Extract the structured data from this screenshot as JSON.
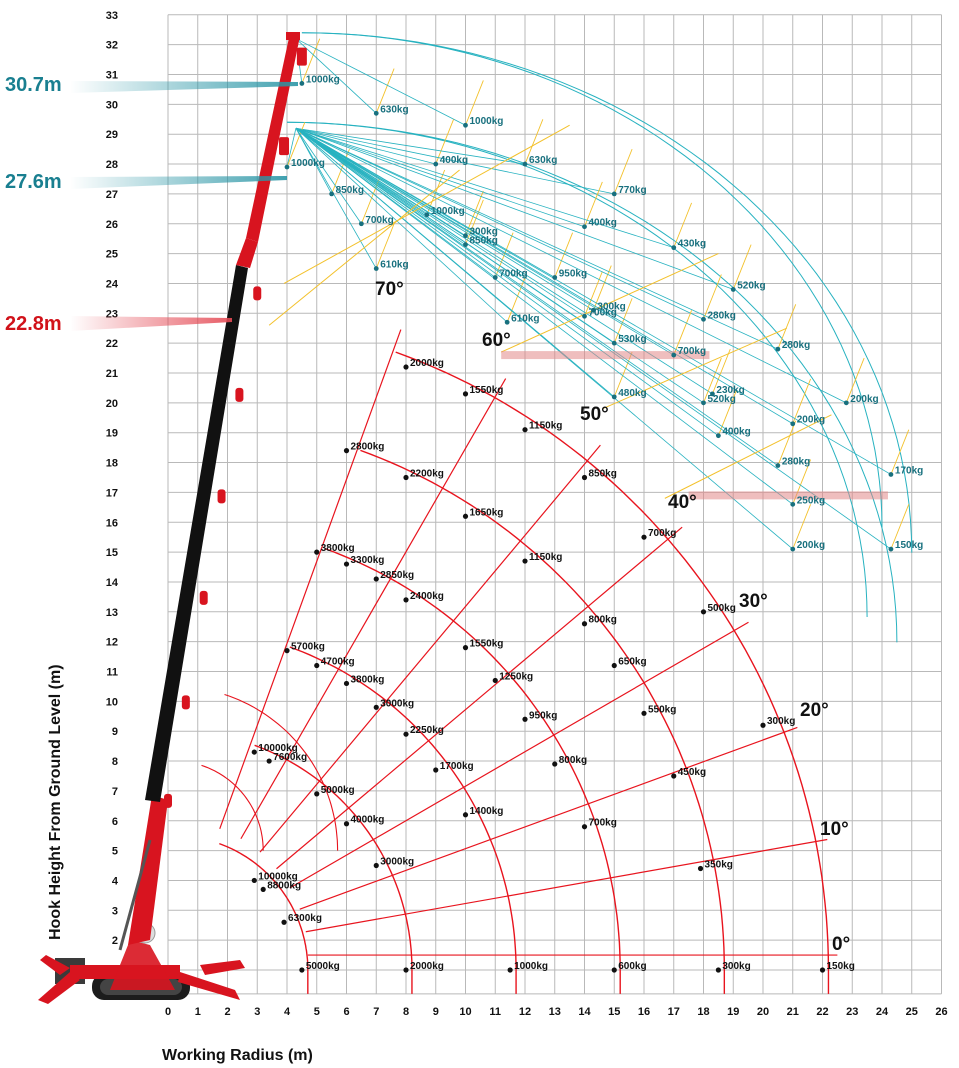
{
  "chart_data": {
    "type": "diagram",
    "subtype": "crane load chart",
    "xlabel": "Working Radius (m)",
    "ylabel": "Hook Height From Ground Level (m)",
    "xlim": [
      0,
      26
    ],
    "ylim": [
      1,
      33
    ],
    "x_ticks": [
      "0",
      "1",
      "2",
      "3",
      "4",
      "5",
      "6",
      "7",
      "8",
      "9",
      "10",
      "11",
      "12",
      "13",
      "14",
      "15",
      "16",
      "17",
      "18",
      "19",
      "20",
      "21",
      "22",
      "23",
      "24",
      "25",
      "26"
    ],
    "y_ticks": [
      "2",
      "3",
      "4",
      "5",
      "6",
      "7",
      "8",
      "9",
      "10",
      "11",
      "12",
      "13",
      "14",
      "15",
      "16",
      "17",
      "18",
      "19",
      "20",
      "21",
      "22",
      "23",
      "24",
      "25",
      "26",
      "27",
      "28",
      "29",
      "30",
      "31",
      "32",
      "33"
    ],
    "grid": true,
    "colors": {
      "main": "#e8141e",
      "jib": "#27b2c0",
      "jib_label": "#18707e",
      "jib_line": "#f3c12b",
      "boom_dark": "#111111",
      "len_red": "#d1121a",
      "len_teal": "#197f90"
    },
    "boom_lengths": [
      {
        "label": "22.8m",
        "color": "#d1121a"
      },
      {
        "label": "27.6m",
        "color": "#197f90"
      },
      {
        "label": "30.7m",
        "color": "#197f90"
      }
    ],
    "angle_labels": [
      "0°",
      "10°",
      "20°",
      "30°",
      "40°",
      "50°",
      "60°",
      "70°"
    ],
    "main_boom_arcs_radius_m": [
      4.5,
      8,
      11.5,
      15,
      18.5,
      22
    ],
    "main_boom_points": [
      {
        "x": 4.5,
        "y": 1.0,
        "label": "5000kg"
      },
      {
        "x": 8,
        "y": 1.0,
        "label": "2000kg"
      },
      {
        "x": 11.5,
        "y": 1.0,
        "label": "1000kg"
      },
      {
        "x": 15,
        "y": 1.0,
        "label": "600kg"
      },
      {
        "x": 18.5,
        "y": 1.0,
        "label": "300kg"
      },
      {
        "x": 22,
        "y": 1.0,
        "label": "150kg"
      },
      {
        "x": 3.9,
        "y": 2.6,
        "label": "6300kg"
      },
      {
        "x": 3.2,
        "y": 3.7,
        "label": "8800kg"
      },
      {
        "x": 2.9,
        "y": 4.0,
        "label": "10000kg"
      },
      {
        "x": 7.0,
        "y": 4.5,
        "label": "3000kg"
      },
      {
        "x": 17.9,
        "y": 4.4,
        "label": "350kg"
      },
      {
        "x": 6.0,
        "y": 5.9,
        "label": "4000kg"
      },
      {
        "x": 5.0,
        "y": 6.9,
        "label": "5000kg"
      },
      {
        "x": 10.0,
        "y": 6.2,
        "label": "1400kg"
      },
      {
        "x": 14.0,
        "y": 5.8,
        "label": "700kg"
      },
      {
        "x": 3.4,
        "y": 8.0,
        "label": "7600kg"
      },
      {
        "x": 2.9,
        "y": 8.3,
        "label": "10000kg"
      },
      {
        "x": 9.0,
        "y": 7.7,
        "label": "1700kg"
      },
      {
        "x": 13.0,
        "y": 7.9,
        "label": "800kg"
      },
      {
        "x": 17.0,
        "y": 7.5,
        "label": "450kg"
      },
      {
        "x": 8.0,
        "y": 8.9,
        "label": "2250kg"
      },
      {
        "x": 12.0,
        "y": 9.4,
        "label": "950kg"
      },
      {
        "x": 20.0,
        "y": 9.2,
        "label": "300kg"
      },
      {
        "x": 7.0,
        "y": 9.8,
        "label": "3000kg"
      },
      {
        "x": 16.0,
        "y": 9.6,
        "label": "550kg"
      },
      {
        "x": 6.0,
        "y": 10.6,
        "label": "3800kg"
      },
      {
        "x": 11.0,
        "y": 10.7,
        "label": "1250kg"
      },
      {
        "x": 5.0,
        "y": 11.2,
        "label": "4700kg"
      },
      {
        "x": 15.0,
        "y": 11.2,
        "label": "650kg"
      },
      {
        "x": 4.0,
        "y": 11.7,
        "label": "5700kg"
      },
      {
        "x": 10.0,
        "y": 11.8,
        "label": "1550kg"
      },
      {
        "x": 14.0,
        "y": 12.6,
        "label": "800kg"
      },
      {
        "x": 18.0,
        "y": 13.0,
        "label": "500kg"
      },
      {
        "x": 8.0,
        "y": 13.4,
        "label": "2400kg"
      },
      {
        "x": 7.0,
        "y": 14.1,
        "label": "2850kg"
      },
      {
        "x": 6.0,
        "y": 14.6,
        "label": "3300kg"
      },
      {
        "x": 5.0,
        "y": 15.0,
        "label": "3800kg"
      },
      {
        "x": 12.0,
        "y": 14.7,
        "label": "1150kg"
      },
      {
        "x": 16.0,
        "y": 15.5,
        "label": "700kg"
      },
      {
        "x": 10.0,
        "y": 16.2,
        "label": "1650kg"
      },
      {
        "x": 8.0,
        "y": 17.5,
        "label": "2200kg"
      },
      {
        "x": 14.0,
        "y": 17.5,
        "label": "850kg"
      },
      {
        "x": 6.0,
        "y": 18.4,
        "label": "2800kg"
      },
      {
        "x": 12.0,
        "y": 19.1,
        "label": "1150kg"
      },
      {
        "x": 10.0,
        "y": 20.3,
        "label": "1550kg"
      },
      {
        "x": 8.0,
        "y": 21.2,
        "label": "2000kg"
      }
    ],
    "jib_points": [
      {
        "x": 4.5,
        "y": 30.7,
        "label": "1000kg"
      },
      {
        "x": 7.0,
        "y": 29.7,
        "label": "630kg"
      },
      {
        "x": 10.0,
        "y": 29.3,
        "label": "1000kg"
      },
      {
        "x": 9.0,
        "y": 28.0,
        "label": "400kg"
      },
      {
        "x": 12.0,
        "y": 28.0,
        "label": "630kg"
      },
      {
        "x": 15.0,
        "y": 27.0,
        "label": "770kg"
      },
      {
        "x": 4.0,
        "y": 27.9,
        "label": "1000kg"
      },
      {
        "x": 5.5,
        "y": 27.0,
        "label": "850kg"
      },
      {
        "x": 8.7,
        "y": 26.3,
        "label": "1000kg"
      },
      {
        "x": 10.0,
        "y": 25.6,
        "label": "300kg"
      },
      {
        "x": 10.0,
        "y": 25.3,
        "label": "850kg"
      },
      {
        "x": 6.5,
        "y": 26.0,
        "label": "700kg"
      },
      {
        "x": 14.0,
        "y": 25.9,
        "label": "400kg"
      },
      {
        "x": 17.0,
        "y": 25.2,
        "label": "430kg"
      },
      {
        "x": 7.0,
        "y": 24.5,
        "label": "610kg"
      },
      {
        "x": 11.0,
        "y": 24.2,
        "label": "700kg"
      },
      {
        "x": 13.0,
        "y": 24.2,
        "label": "950kg"
      },
      {
        "x": 19.0,
        "y": 23.8,
        "label": "520kg"
      },
      {
        "x": 11.4,
        "y": 22.7,
        "label": "610kg"
      },
      {
        "x": 14.3,
        "y": 23.1,
        "label": "300kg"
      },
      {
        "x": 14.0,
        "y": 22.9,
        "label": "700kg"
      },
      {
        "x": 18.0,
        "y": 22.8,
        "label": "280kg"
      },
      {
        "x": 15.0,
        "y": 22.0,
        "label": "530kg"
      },
      {
        "x": 17.0,
        "y": 21.6,
        "label": "700kg"
      },
      {
        "x": 20.5,
        "y": 21.8,
        "label": "280kg"
      },
      {
        "x": 15.0,
        "y": 20.2,
        "label": "480kg"
      },
      {
        "x": 18.3,
        "y": 20.3,
        "label": "230kg"
      },
      {
        "x": 18.0,
        "y": 20.0,
        "label": "520kg"
      },
      {
        "x": 22.8,
        "y": 20.0,
        "label": "200kg"
      },
      {
        "x": 18.5,
        "y": 18.9,
        "label": "400kg"
      },
      {
        "x": 21.0,
        "y": 19.3,
        "label": "200kg"
      },
      {
        "x": 20.5,
        "y": 17.9,
        "label": "280kg"
      },
      {
        "x": 24.3,
        "y": 17.6,
        "label": "170kg"
      },
      {
        "x": 21.0,
        "y": 16.6,
        "label": "250kg"
      },
      {
        "x": 21.0,
        "y": 15.1,
        "label": "200kg"
      },
      {
        "x": 24.3,
        "y": 15.1,
        "label": "150kg"
      }
    ]
  }
}
